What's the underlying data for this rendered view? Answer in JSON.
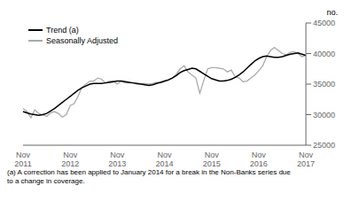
{
  "chart_data": {
    "type": "line",
    "y_label": "no.",
    "footnote": "(a) A correction has been applied to January 2014 for a break in the Non-Banks series due\nto a change in coverage.",
    "categories": [
      "Nov\n2011",
      null,
      null,
      null,
      null,
      null,
      null,
      null,
      null,
      null,
      null,
      null,
      "Nov\n2012",
      null,
      null,
      null,
      null,
      null,
      null,
      null,
      null,
      null,
      null,
      null,
      "Nov\n2013",
      null,
      null,
      null,
      null,
      null,
      null,
      null,
      null,
      null,
      null,
      null,
      "Nov\n2014",
      null,
      null,
      null,
      null,
      null,
      null,
      null,
      null,
      null,
      null,
      null,
      "Nov\n2015",
      null,
      null,
      null,
      null,
      null,
      null,
      null,
      null,
      null,
      null,
      null,
      "Nov\n2016",
      null,
      null,
      null,
      null,
      null,
      null,
      null,
      null,
      null,
      null,
      null,
      "Nov\n2017"
    ],
    "series": [
      {
        "name": "Trend (a)",
        "color": "#000000",
        "values": [
          30500,
          30300,
          30100,
          30000,
          29900,
          30000,
          30200,
          30600,
          31000,
          31500,
          32000,
          32500,
          33000,
          33500,
          34000,
          34400,
          34700,
          35000,
          35100,
          35100,
          35100,
          35200,
          35300,
          35400,
          35500,
          35500,
          35400,
          35300,
          35200,
          35100,
          35000,
          34900,
          34800,
          34900,
          35100,
          35300,
          35500,
          35700,
          36000,
          36400,
          36900,
          37200,
          37400,
          37600,
          37500,
          37100,
          36700,
          36300,
          35900,
          35700,
          35500,
          35500,
          35600,
          35800,
          36100,
          36500,
          37000,
          37600,
          38200,
          38800,
          39200,
          39500,
          39600,
          39500,
          39400,
          39400,
          39500,
          39700,
          39900,
          40000,
          40100,
          39900,
          39700
        ]
      },
      {
        "name": "Seasonally Adjusted",
        "color": "#aaaaaa",
        "values": [
          31000,
          30500,
          29500,
          30800,
          30200,
          30000,
          29700,
          30300,
          30500,
          30200,
          29600,
          30000,
          31500,
          31800,
          33000,
          34500,
          35000,
          35500,
          35500,
          36000,
          35800,
          35200,
          35500,
          35500,
          35000,
          35500,
          35200,
          35200,
          35200,
          35000,
          35100,
          35100,
          35000,
          35100,
          35300,
          35200,
          35400,
          35600,
          36000,
          36600,
          37500,
          38000,
          37000,
          36500,
          36000,
          33500,
          35600,
          37500,
          37700,
          37700,
          37600,
          37500,
          37000,
          37300,
          36200,
          36000,
          35400,
          35500,
          36000,
          36500,
          37200,
          38000,
          39500,
          40500,
          41000,
          40500,
          40000,
          39800,
          40200,
          40300,
          40000,
          39500,
          39700
        ]
      }
    ],
    "ylim": [
      25000,
      45000
    ],
    "yticks": [
      25000,
      30000,
      35000,
      40000,
      45000
    ],
    "grid": false,
    "legend": "upper left"
  }
}
